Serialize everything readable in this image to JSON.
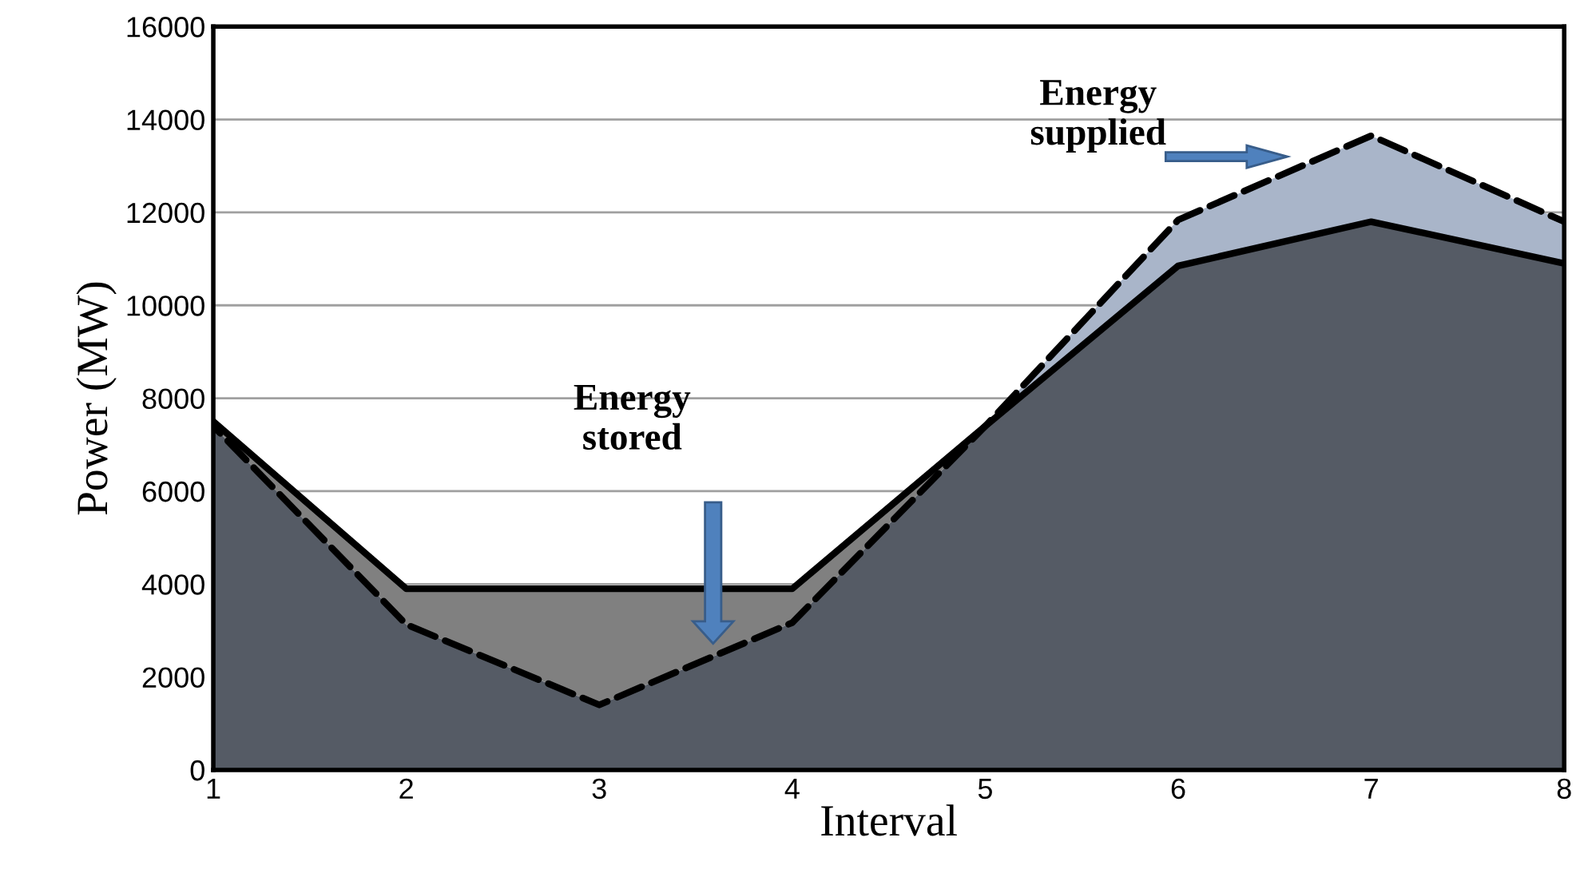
{
  "chart_data": {
    "type": "area",
    "xlabel": "Interval",
    "ylabel": "Power (MW)",
    "x": [
      1,
      2,
      3,
      4,
      5,
      6,
      7,
      8
    ],
    "series": [
      {
        "color": "#808080",
        "line_style": "solid",
        "values": [
          7500,
          3900,
          3900,
          3900,
          7400,
          10850,
          11800,
          10900
        ]
      },
      {
        "color": "#a9b5c9",
        "line_style": "dashed",
        "values": [
          7400,
          3130,
          1400,
          3170,
          7400,
          11840,
          13650,
          11800
        ]
      }
    ],
    "xlim": [
      1,
      8
    ],
    "xticks": [
      1,
      2,
      3,
      4,
      5,
      6,
      7,
      8
    ],
    "ylim": [
      0,
      16000
    ],
    "yticks": [
      0,
      2000,
      4000,
      6000,
      8000,
      10000,
      12000,
      14000,
      16000
    ],
    "grid": "y",
    "annotations": [
      "Energy\nstored",
      "Energy\nsupplied"
    ]
  }
}
